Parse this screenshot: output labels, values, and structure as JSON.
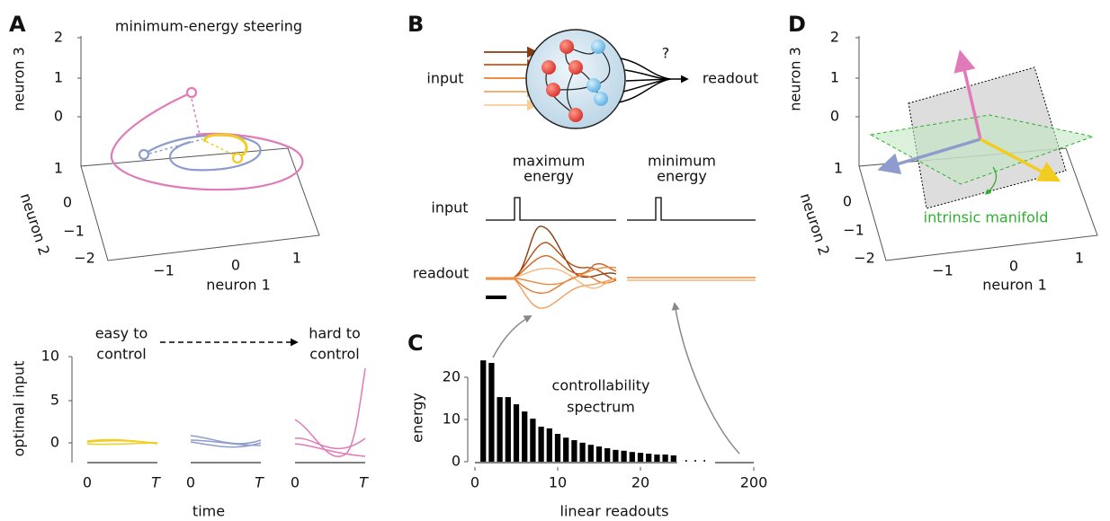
{
  "panel_labels": [
    "A",
    "B",
    "C",
    "D"
  ],
  "panel_a": {
    "title": "minimum-energy steering",
    "axis_labels": {
      "neuron_3": "neuron 3",
      "neuron_2": "neuron 2",
      "neuron_1": "neuron 1"
    },
    "neuron_3_ticks": [
      "2",
      "1",
      "0"
    ],
    "neuron_2_ticks": [
      "1",
      "0",
      "−1",
      "−2"
    ],
    "neuron_1_ticks": [
      "−1",
      "0",
      "1"
    ],
    "control": {
      "easy": [
        "easy to",
        "control"
      ],
      "hard": [
        "hard to",
        "control"
      ],
      "y_label": "optimal input",
      "y_ticks": [
        "10",
        "5",
        "0"
      ],
      "x_ticks": [
        "0",
        "T"
      ],
      "x_label": "time"
    }
  },
  "panel_b": {
    "input": "input",
    "readout": "readout",
    "question": "?",
    "maximum": [
      "maximum",
      "energy"
    ],
    "minimum": [
      "minimum",
      "energy"
    ],
    "trace_input": "input",
    "trace_readout": "readout"
  },
  "chart_data": {
    "type": "bar",
    "annotation": [
      "controllability",
      "spectrum"
    ],
    "ylabel": "energy",
    "xlabel": "linear readouts",
    "x": [
      1,
      2,
      3,
      4,
      5,
      6,
      7,
      8,
      9,
      10,
      11,
      12,
      13,
      14,
      15,
      16,
      17,
      18,
      19,
      20,
      21,
      22,
      23,
      24
    ],
    "values": [
      24,
      23.4,
      15.3,
      15.3,
      13.6,
      11.9,
      10.2,
      8.3,
      7.9,
      6.6,
      5.7,
      5.1,
      4.5,
      4,
      3.6,
      3.2,
      2.8,
      2.6,
      2.3,
      2.1,
      1.9,
      1.7,
      1.7,
      1.5
    ],
    "color": "#000000",
    "xlim": [
      0,
      25
    ],
    "ylim": [
      0,
      25
    ],
    "xticks": [
      0,
      10,
      20
    ],
    "yticks": [
      0,
      10,
      20
    ],
    "x_break_tick": 200,
    "x_break_mark": "· · ·"
  },
  "panel_d": {
    "axis_labels": {
      "neuron_3": "neuron 3",
      "neuron_2": "neuron 2",
      "neuron_1": "neuron 1"
    },
    "neuron_3_ticks": [
      "2",
      "1",
      "0"
    ],
    "neuron_2_ticks": [
      "1",
      "0",
      "−1",
      "−2"
    ],
    "neuron_1_ticks": [
      "−1",
      "0",
      "1"
    ],
    "annotation": "intrinsic manifold"
  }
}
